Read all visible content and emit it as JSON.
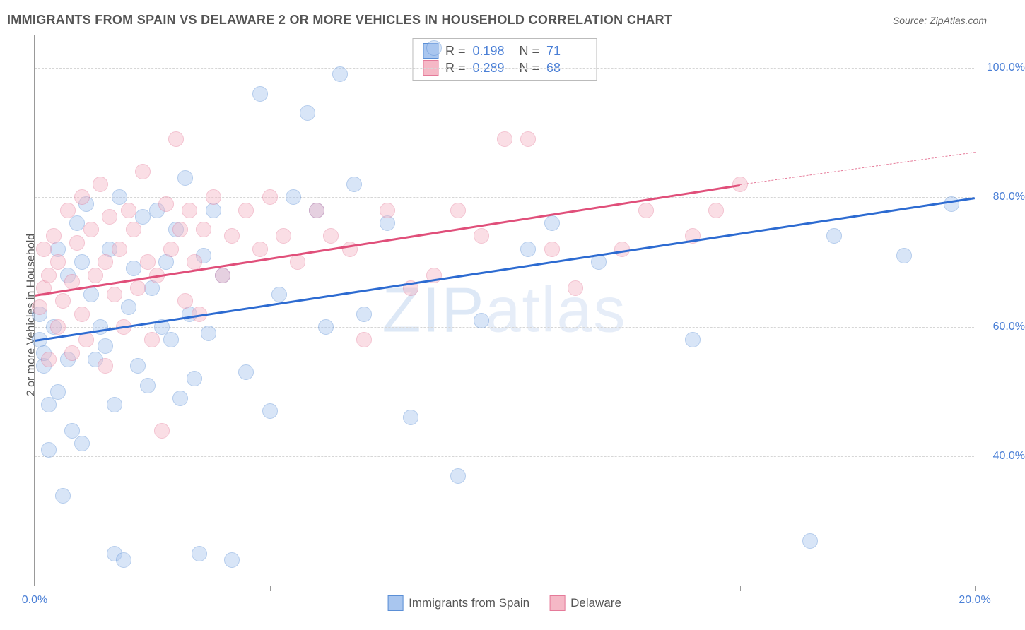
{
  "title": "IMMIGRANTS FROM SPAIN VS DELAWARE 2 OR MORE VEHICLES IN HOUSEHOLD CORRELATION CHART",
  "source": "Source: ZipAtlas.com",
  "y_axis_label": "2 or more Vehicles in Household",
  "watermark": "ZIPatlas",
  "chart": {
    "type": "scatter",
    "xlim": [
      0,
      20
    ],
    "ylim": [
      20,
      105
    ],
    "x_ticks": [
      0,
      5,
      10,
      15,
      20
    ],
    "x_tick_labels": [
      "0.0%",
      "",
      "",
      "",
      "20.0%"
    ],
    "y_grid": [
      40,
      60,
      80,
      100
    ],
    "y_tick_labels": [
      "40.0%",
      "60.0%",
      "80.0%",
      "100.0%"
    ],
    "background_color": "#ffffff",
    "grid_color": "#d6d6d6",
    "axis_color": "#999999",
    "marker_radius": 11,
    "marker_opacity": 0.45,
    "series": [
      {
        "name": "Immigrants from Spain",
        "color_fill": "#a9c6ef",
        "color_stroke": "#5b8fd6",
        "r": "0.198",
        "n": "71",
        "trend": {
          "x1": 0,
          "y1": 58,
          "x2": 20,
          "y2": 80,
          "color": "#2d6bd1",
          "width": 2.5
        },
        "points": [
          [
            0.1,
            58
          ],
          [
            0.1,
            62
          ],
          [
            0.2,
            54
          ],
          [
            0.2,
            56
          ],
          [
            0.3,
            41
          ],
          [
            0.3,
            48
          ],
          [
            0.4,
            60
          ],
          [
            0.5,
            50
          ],
          [
            0.5,
            72
          ],
          [
            0.6,
            34
          ],
          [
            0.7,
            55
          ],
          [
            0.7,
            68
          ],
          [
            0.8,
            44
          ],
          [
            0.9,
            76
          ],
          [
            1.0,
            42
          ],
          [
            1.0,
            70
          ],
          [
            1.1,
            79
          ],
          [
            1.2,
            65
          ],
          [
            1.3,
            55
          ],
          [
            1.4,
            60
          ],
          [
            1.5,
            57
          ],
          [
            1.6,
            72
          ],
          [
            1.7,
            25
          ],
          [
            1.7,
            48
          ],
          [
            1.8,
            80
          ],
          [
            1.9,
            24
          ],
          [
            2.0,
            63
          ],
          [
            2.1,
            69
          ],
          [
            2.2,
            54
          ],
          [
            2.3,
            77
          ],
          [
            2.4,
            51
          ],
          [
            2.5,
            66
          ],
          [
            2.6,
            78
          ],
          [
            2.7,
            60
          ],
          [
            2.8,
            70
          ],
          [
            2.9,
            58
          ],
          [
            3.0,
            75
          ],
          [
            3.1,
            49
          ],
          [
            3.2,
            83
          ],
          [
            3.3,
            62
          ],
          [
            3.4,
            52
          ],
          [
            3.5,
            25
          ],
          [
            3.6,
            71
          ],
          [
            3.7,
            59
          ],
          [
            3.8,
            78
          ],
          [
            4.0,
            68
          ],
          [
            4.2,
            24
          ],
          [
            4.5,
            53
          ],
          [
            4.8,
            96
          ],
          [
            5.0,
            47
          ],
          [
            5.2,
            65
          ],
          [
            5.5,
            80
          ],
          [
            5.8,
            93
          ],
          [
            6.0,
            78
          ],
          [
            6.2,
            60
          ],
          [
            6.5,
            99
          ],
          [
            6.8,
            82
          ],
          [
            7.0,
            62
          ],
          [
            7.5,
            76
          ],
          [
            8.0,
            46
          ],
          [
            8.5,
            103
          ],
          [
            9.0,
            37
          ],
          [
            9.5,
            61
          ],
          [
            10.5,
            72
          ],
          [
            11.0,
            76
          ],
          [
            12.0,
            70
          ],
          [
            14.0,
            58
          ],
          [
            16.5,
            27
          ],
          [
            17.0,
            74
          ],
          [
            18.5,
            71
          ],
          [
            19.5,
            79
          ]
        ]
      },
      {
        "name": "Delaware",
        "color_fill": "#f5b8c6",
        "color_stroke": "#e57a99",
        "r": "0.289",
        "n": "68",
        "trend_solid": {
          "x1": 0,
          "y1": 65,
          "x2": 15,
          "y2": 82,
          "color": "#e04f7a",
          "width": 2.5
        },
        "trend_dashed": {
          "x1": 15,
          "y1": 82,
          "x2": 20,
          "y2": 87,
          "color": "#e57a99",
          "width": 1.5
        },
        "points": [
          [
            0.1,
            63
          ],
          [
            0.2,
            66
          ],
          [
            0.2,
            72
          ],
          [
            0.3,
            55
          ],
          [
            0.3,
            68
          ],
          [
            0.4,
            74
          ],
          [
            0.5,
            60
          ],
          [
            0.5,
            70
          ],
          [
            0.6,
            64
          ],
          [
            0.7,
            78
          ],
          [
            0.8,
            56
          ],
          [
            0.8,
            67
          ],
          [
            0.9,
            73
          ],
          [
            1.0,
            62
          ],
          [
            1.0,
            80
          ],
          [
            1.1,
            58
          ],
          [
            1.2,
            75
          ],
          [
            1.3,
            68
          ],
          [
            1.4,
            82
          ],
          [
            1.5,
            54
          ],
          [
            1.5,
            70
          ],
          [
            1.6,
            77
          ],
          [
            1.7,
            65
          ],
          [
            1.8,
            72
          ],
          [
            1.9,
            60
          ],
          [
            2.0,
            78
          ],
          [
            2.1,
            75
          ],
          [
            2.2,
            66
          ],
          [
            2.3,
            84
          ],
          [
            2.4,
            70
          ],
          [
            2.5,
            58
          ],
          [
            2.6,
            68
          ],
          [
            2.7,
            44
          ],
          [
            2.8,
            79
          ],
          [
            2.9,
            72
          ],
          [
            3.0,
            89
          ],
          [
            3.1,
            75
          ],
          [
            3.2,
            64
          ],
          [
            3.3,
            78
          ],
          [
            3.4,
            70
          ],
          [
            3.5,
            62
          ],
          [
            3.6,
            75
          ],
          [
            3.8,
            80
          ],
          [
            4.0,
            68
          ],
          [
            4.2,
            74
          ],
          [
            4.5,
            78
          ],
          [
            4.8,
            72
          ],
          [
            5.0,
            80
          ],
          [
            5.3,
            74
          ],
          [
            5.6,
            70
          ],
          [
            6.0,
            78
          ],
          [
            6.3,
            74
          ],
          [
            6.7,
            72
          ],
          [
            7.0,
            58
          ],
          [
            7.5,
            78
          ],
          [
            8.0,
            66
          ],
          [
            8.5,
            68
          ],
          [
            9.0,
            78
          ],
          [
            9.5,
            74
          ],
          [
            10.0,
            89
          ],
          [
            10.5,
            89
          ],
          [
            11.0,
            72
          ],
          [
            11.5,
            66
          ],
          [
            12.5,
            72
          ],
          [
            13.0,
            78
          ],
          [
            14.0,
            74
          ],
          [
            14.5,
            78
          ],
          [
            15.0,
            82
          ]
        ]
      }
    ]
  },
  "legend_bottom": [
    {
      "label": "Immigrants from Spain",
      "fill": "#a9c6ef",
      "stroke": "#5b8fd6"
    },
    {
      "label": "Delaware",
      "fill": "#f5b8c6",
      "stroke": "#e57a99"
    }
  ]
}
